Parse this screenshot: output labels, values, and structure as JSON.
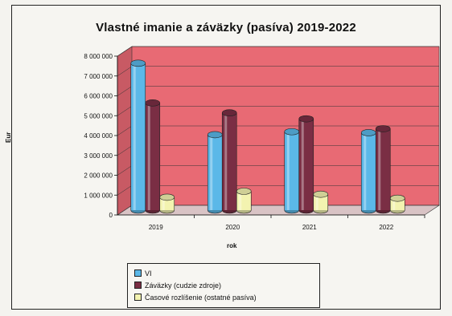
{
  "chart_data": {
    "type": "bar",
    "title": "Vlastné imanie a záväzky (pasíva)  2019-2022",
    "xlabel": "rok",
    "ylabel": "Eur",
    "categories": [
      "2019",
      "2020",
      "2021",
      "2022"
    ],
    "ylim": [
      0,
      8000000
    ],
    "ytick_labels": [
      "0",
      "1 000 000",
      "2 000 000",
      "3 000 000",
      "4 000 000",
      "5 000 000",
      "6 000 000",
      "7 000 000",
      "8 000 000"
    ],
    "series": [
      {
        "name": "VI",
        "values": [
          7400000,
          3800000,
          3950000,
          3900000
        ],
        "color": "#5bb8e8"
      },
      {
        "name": "Záväzky (cudzie zdroje)",
        "values": [
          5400000,
          4900000,
          4600000,
          4100000
        ],
        "color": "#7a2e44"
      },
      {
        "name": "Časové rozlíšenie (ostatné pasíva)",
        "values": [
          650000,
          950000,
          800000,
          600000
        ],
        "color": "#f3f3b0"
      }
    ],
    "grid": true,
    "legend_position": "bottom"
  }
}
